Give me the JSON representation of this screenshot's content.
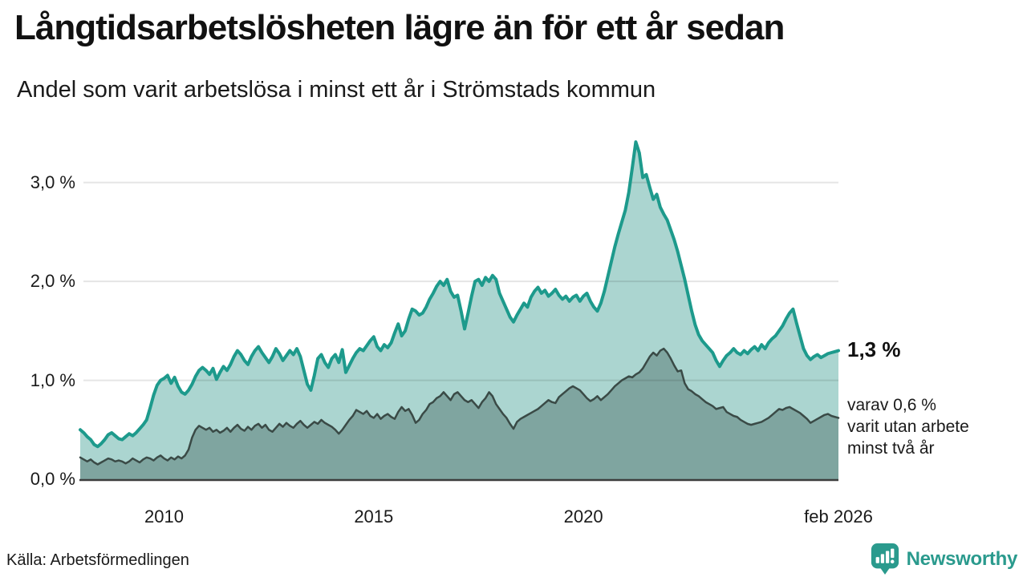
{
  "header": {
    "title": "Långtidsarbetslösheten lägre än för ett år sedan",
    "subtitle": "Andel som varit arbetslösa i minst ett år i Strömstads kommun"
  },
  "chart_data": {
    "type": "area",
    "title": "Långtidsarbetslösheten lägre än för ett år sedan",
    "subtitle": "Andel som varit arbetslösa i minst ett år i Strömstads kommun",
    "unit": "%",
    "frequency": "monthly",
    "x_start": "2008-01",
    "x_end": "2026-02",
    "ylim": [
      0,
      3.5
    ],
    "grid": true,
    "y_ticks": [
      {
        "value": 0,
        "label": "0,0 %"
      },
      {
        "value": 1,
        "label": "1,0 %"
      },
      {
        "value": 2,
        "label": "2,0 %"
      },
      {
        "value": 3,
        "label": "3,0 %"
      }
    ],
    "x_ticks": [
      {
        "label": "2010",
        "month_index": 24
      },
      {
        "label": "2015",
        "month_index": 84
      },
      {
        "label": "2020",
        "month_index": 144
      },
      {
        "label": "feb 2026",
        "month_index": 217
      }
    ],
    "colors": {
      "line_1yr": "#1d9a8c",
      "fill_1yr": "#abd5d0",
      "line_2yr": "#3a4a46",
      "fill_2yr": "#7fa5a0",
      "gridline": "rgba(0,0,0,0.10)",
      "axis": "#3d3d3d"
    },
    "series": [
      {
        "name": "arbetslösa minst ett år",
        "line": "#1d9a8c",
        "fill": "#abd5d0",
        "width": 4,
        "values": [
          0.5,
          0.47,
          0.43,
          0.4,
          0.35,
          0.33,
          0.36,
          0.4,
          0.45,
          0.47,
          0.44,
          0.41,
          0.4,
          0.43,
          0.46,
          0.44,
          0.47,
          0.51,
          0.55,
          0.6,
          0.72,
          0.85,
          0.95,
          1.0,
          1.02,
          1.05,
          0.97,
          1.03,
          0.94,
          0.88,
          0.86,
          0.9,
          0.96,
          1.04,
          1.1,
          1.13,
          1.1,
          1.06,
          1.12,
          1.01,
          1.08,
          1.14,
          1.1,
          1.16,
          1.24,
          1.3,
          1.26,
          1.2,
          1.16,
          1.24,
          1.3,
          1.34,
          1.28,
          1.23,
          1.18,
          1.24,
          1.32,
          1.27,
          1.2,
          1.25,
          1.3,
          1.26,
          1.32,
          1.24,
          1.1,
          0.96,
          0.9,
          1.05,
          1.22,
          1.26,
          1.18,
          1.13,
          1.22,
          1.26,
          1.18,
          1.31,
          1.08,
          1.15,
          1.22,
          1.28,
          1.32,
          1.3,
          1.35,
          1.4,
          1.44,
          1.34,
          1.3,
          1.36,
          1.33,
          1.38,
          1.48,
          1.57,
          1.45,
          1.5,
          1.62,
          1.72,
          1.7,
          1.66,
          1.68,
          1.74,
          1.82,
          1.88,
          1.95,
          2.0,
          1.96,
          2.02,
          1.9,
          1.84,
          1.86,
          1.7,
          1.52,
          1.68,
          1.85,
          2.0,
          2.02,
          1.96,
          2.04,
          2.0,
          2.06,
          2.02,
          1.88,
          1.8,
          1.72,
          1.64,
          1.59,
          1.66,
          1.72,
          1.78,
          1.74,
          1.84,
          1.9,
          1.94,
          1.88,
          1.91,
          1.85,
          1.88,
          1.92,
          1.86,
          1.82,
          1.85,
          1.8,
          1.84,
          1.86,
          1.8,
          1.85,
          1.88,
          1.8,
          1.74,
          1.7,
          1.78,
          1.9,
          2.05,
          2.2,
          2.35,
          2.48,
          2.6,
          2.72,
          2.9,
          3.15,
          3.41,
          3.3,
          3.05,
          3.08,
          2.95,
          2.83,
          2.88,
          2.75,
          2.68,
          2.62,
          2.52,
          2.42,
          2.3,
          2.16,
          2.02,
          1.86,
          1.7,
          1.56,
          1.46,
          1.4,
          1.36,
          1.32,
          1.28,
          1.2,
          1.14,
          1.2,
          1.25,
          1.28,
          1.32,
          1.28,
          1.26,
          1.3,
          1.27,
          1.31,
          1.34,
          1.3,
          1.36,
          1.32,
          1.38,
          1.42,
          1.45,
          1.5,
          1.55,
          1.62,
          1.68,
          1.72,
          1.58,
          1.45,
          1.32,
          1.25,
          1.21,
          1.24,
          1.26,
          1.23,
          1.25,
          1.27,
          1.28,
          1.29,
          1.3
        ]
      },
      {
        "name": "varav utan arbete minst två år",
        "line": "#3a4a46",
        "fill": "#7fa5a0",
        "width": 2.5,
        "values": [
          0.22,
          0.2,
          0.18,
          0.2,
          0.17,
          0.15,
          0.17,
          0.19,
          0.21,
          0.2,
          0.18,
          0.19,
          0.18,
          0.16,
          0.18,
          0.21,
          0.19,
          0.17,
          0.2,
          0.22,
          0.21,
          0.19,
          0.22,
          0.24,
          0.21,
          0.19,
          0.22,
          0.2,
          0.23,
          0.21,
          0.24,
          0.3,
          0.42,
          0.5,
          0.54,
          0.52,
          0.5,
          0.52,
          0.48,
          0.5,
          0.47,
          0.49,
          0.52,
          0.48,
          0.52,
          0.55,
          0.51,
          0.49,
          0.53,
          0.5,
          0.54,
          0.56,
          0.52,
          0.55,
          0.5,
          0.48,
          0.52,
          0.56,
          0.53,
          0.57,
          0.54,
          0.52,
          0.56,
          0.59,
          0.55,
          0.52,
          0.55,
          0.58,
          0.56,
          0.6,
          0.57,
          0.55,
          0.53,
          0.5,
          0.46,
          0.5,
          0.55,
          0.6,
          0.64,
          0.7,
          0.68,
          0.66,
          0.69,
          0.64,
          0.62,
          0.66,
          0.61,
          0.64,
          0.66,
          0.63,
          0.61,
          0.68,
          0.73,
          0.69,
          0.71,
          0.65,
          0.57,
          0.6,
          0.66,
          0.7,
          0.76,
          0.78,
          0.82,
          0.84,
          0.88,
          0.84,
          0.8,
          0.86,
          0.88,
          0.84,
          0.8,
          0.78,
          0.8,
          0.76,
          0.72,
          0.78,
          0.82,
          0.88,
          0.84,
          0.76,
          0.71,
          0.66,
          0.62,
          0.56,
          0.51,
          0.58,
          0.61,
          0.63,
          0.65,
          0.67,
          0.69,
          0.71,
          0.74,
          0.77,
          0.8,
          0.78,
          0.77,
          0.83,
          0.86,
          0.89,
          0.92,
          0.94,
          0.92,
          0.9,
          0.86,
          0.82,
          0.79,
          0.81,
          0.84,
          0.8,
          0.83,
          0.86,
          0.9,
          0.94,
          0.97,
          1.0,
          1.02,
          1.04,
          1.03,
          1.06,
          1.08,
          1.12,
          1.18,
          1.24,
          1.28,
          1.25,
          1.3,
          1.32,
          1.28,
          1.22,
          1.15,
          1.09,
          1.1,
          0.97,
          0.91,
          0.89,
          0.86,
          0.84,
          0.81,
          0.78,
          0.76,
          0.74,
          0.71,
          0.72,
          0.73,
          0.68,
          0.66,
          0.64,
          0.63,
          0.6,
          0.58,
          0.56,
          0.55,
          0.56,
          0.57,
          0.58,
          0.6,
          0.62,
          0.65,
          0.68,
          0.71,
          0.7,
          0.72,
          0.73,
          0.71,
          0.69,
          0.67,
          0.64,
          0.61,
          0.57,
          0.59,
          0.61,
          0.63,
          0.65,
          0.66,
          0.64,
          0.63,
          0.62
        ]
      }
    ],
    "annotations": {
      "latest_total": "1,3 %",
      "latest_two_years_lines": [
        "varav 0,6 %",
        "varit utan arbete",
        "minst två år"
      ]
    }
  },
  "footer": {
    "source": "Källa: Arbetsförmedlingen",
    "brand": "Newsworthy",
    "brand_color": "#2a9a8d"
  }
}
